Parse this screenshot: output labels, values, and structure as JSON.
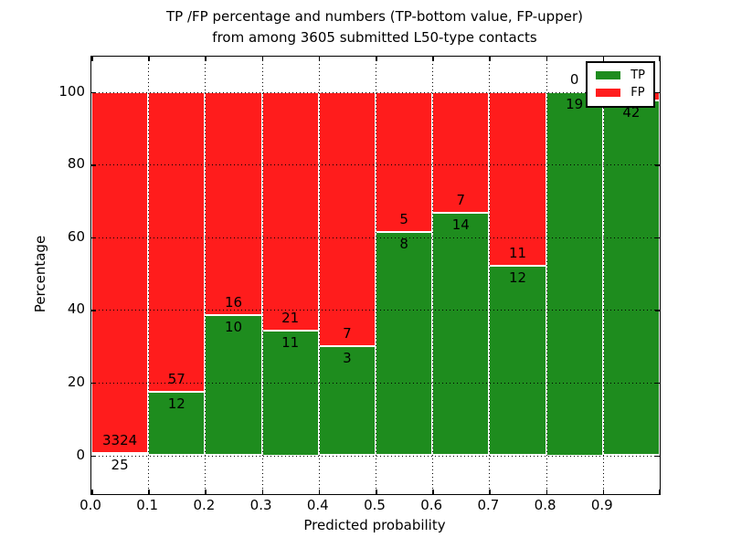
{
  "title": {
    "line1": "TP /FP percentage and numbers (TP-bottom value, FP-upper)",
    "line2": "from among 3605 submitted L50-type contacts"
  },
  "axes": {
    "xlabel": "Predicted probability",
    "ylabel": "Percentage"
  },
  "legend": {
    "position": "upper right",
    "entries": [
      {
        "label": "TP",
        "color": "#1e8c1e"
      },
      {
        "label": "FP",
        "color": "#ff1c1c"
      }
    ]
  },
  "chart_data": {
    "type": "bar",
    "stacked": true,
    "normalized": "each bin scaled to 100%, bar number labels show raw counts",
    "title": "TP /FP percentage and numbers (TP-bottom value, FP-upper) from among 3605 submitted L50-type contacts",
    "xlabel": "Predicted probability",
    "ylabel": "Percentage",
    "total_contacts": 3605,
    "bin_edges": [
      0.0,
      0.1,
      0.2,
      0.3,
      0.4,
      0.5,
      0.6,
      0.7,
      0.8,
      0.9,
      1.0
    ],
    "categories": [
      "0.0-0.1",
      "0.1-0.2",
      "0.2-0.3",
      "0.3-0.4",
      "0.4-0.5",
      "0.5-0.6",
      "0.6-0.7",
      "0.7-0.8",
      "0.8-0.9",
      "0.9-1.0"
    ],
    "series": [
      {
        "name": "TP",
        "color": "#1e8c1e",
        "counts": [
          25,
          12,
          10,
          11,
          3,
          8,
          14,
          12,
          19,
          42
        ]
      },
      {
        "name": "FP",
        "color": "#ff1c1c",
        "counts": [
          3324,
          57,
          16,
          21,
          7,
          5,
          7,
          11,
          0,
          1
        ]
      }
    ],
    "tp_labels": [
      "25",
      "12",
      "10",
      "11",
      "3",
      "8",
      "14",
      "12",
      "19",
      "42"
    ],
    "fp_labels": [
      "3324",
      "57",
      "16",
      "21",
      "7",
      "5",
      "7",
      "11",
      "0",
      ""
    ],
    "note": "FP label of last bin is hidden behind the legend box",
    "ylim": [
      -10.5,
      109.8
    ],
    "yticks": [
      "0",
      "20",
      "40",
      "60",
      "80",
      "100"
    ],
    "ytick_values": [
      0,
      20,
      40,
      60,
      80,
      100
    ],
    "xticks": [
      "0.0",
      "0.1",
      "0.2",
      "0.3",
      "0.4",
      "0.5",
      "0.6",
      "0.7",
      "0.8",
      "0.9"
    ],
    "grid": {
      "style": "dotted",
      "color": "#000000",
      "drawn_above_bars": true
    },
    "legend_position": "upper right"
  }
}
